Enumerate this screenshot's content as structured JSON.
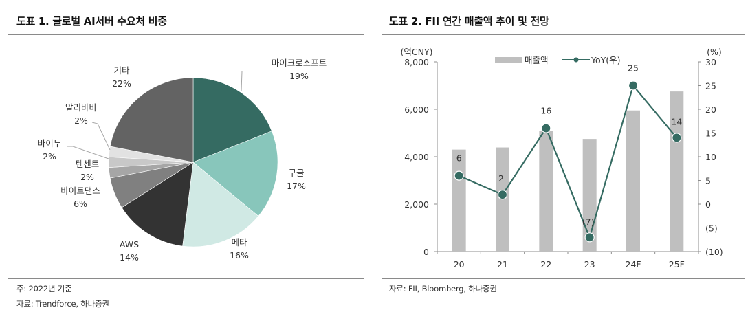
{
  "left": {
    "title": "도표 1. 글로벌 AI서버 수요처 비중",
    "notes": [
      "주: 2022년 기준",
      "자료: Trendforce, 하나증권"
    ]
  },
  "right": {
    "title": "도표 2. FII 연간 매출액 추이 및 전망",
    "notes": [
      "자료: FII, Bloomberg, 하나증권"
    ]
  },
  "chart_data": [
    {
      "type": "pie",
      "title": "도표 1. 글로벌 AI서버 수요처 비중",
      "start_angle": "12 o'clock, clockwise",
      "categories": [
        "마이크로소프트",
        "구글",
        "메타",
        "AWS",
        "바이트댄스",
        "텐센트",
        "바이두",
        "알리바바",
        "기타"
      ],
      "values": [
        19,
        17,
        16,
        14,
        6,
        2,
        2,
        2,
        22
      ],
      "labels": [
        "19%",
        "17%",
        "16%",
        "14%",
        "6%",
        "2%",
        "2%",
        "2%",
        "22%"
      ],
      "colors": [
        "#356b62",
        "#88c6bb",
        "#d0e9e4",
        "#333333",
        "#808080",
        "#a6a6a6",
        "#c8c8c8",
        "#e2e2e2",
        "#636363"
      ],
      "note": "주: 2022년 기준",
      "source": "자료: Trendforce, 하나증권"
    },
    {
      "type": "bar",
      "title": "도표 2. FII 연간 매출액 추이 및 전망",
      "categories": [
        "20",
        "21",
        "22",
        "23",
        "24F",
        "25F"
      ],
      "series": [
        {
          "name": "매출액",
          "type": "bar",
          "axis": "left",
          "color": "#bfbfbf",
          "values": [
            4300,
            4390,
            5100,
            4750,
            5950,
            6750
          ]
        },
        {
          "name": "YoY(우)",
          "type": "line",
          "axis": "right",
          "color": "#356b62",
          "values": [
            6,
            2,
            16,
            -7,
            25,
            14
          ],
          "data_labels": [
            "6",
            "2",
            "16",
            "(7)",
            "25",
            "14"
          ]
        }
      ],
      "ylabel": "(억CNY)",
      "ylabel_right": "(%)",
      "ylim": [
        0,
        8000
      ],
      "yticks": [
        "0",
        "2,000",
        "4,000",
        "6,000",
        "8,000"
      ],
      "ylim_right": [
        -10,
        30
      ],
      "yticks_right": [
        "(10)",
        "(5)",
        "0",
        "5",
        "10",
        "15",
        "20",
        "25",
        "30"
      ],
      "legend_position": "top",
      "grid": false,
      "source": "자료: FII, Bloomberg, 하나증권"
    }
  ]
}
